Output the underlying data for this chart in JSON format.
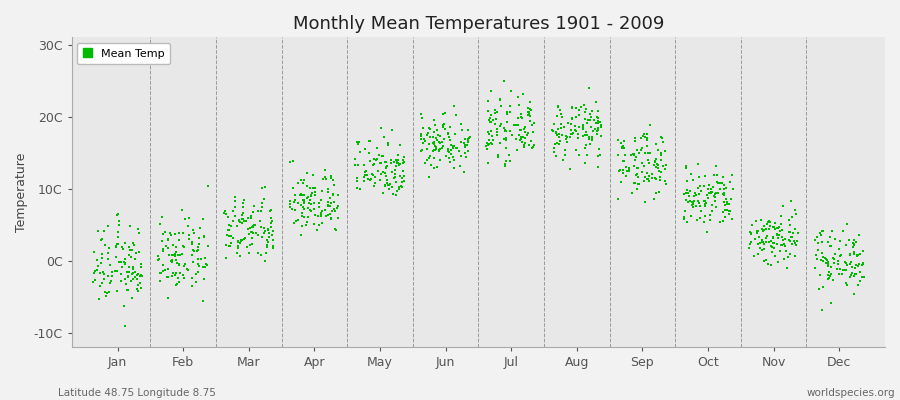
{
  "title": "Monthly Mean Temperatures 1901 - 2009",
  "ylabel": "Temperature",
  "ytick_labels": [
    "-10C",
    "0C",
    "10C",
    "20C",
    "30C"
  ],
  "ytick_values": [
    -10,
    0,
    10,
    20,
    30
  ],
  "ylim": [
    -12,
    31
  ],
  "month_labels": [
    "Jan",
    "Feb",
    "Mar",
    "Apr",
    "May",
    "Jun",
    "Jul",
    "Aug",
    "Sep",
    "Oct",
    "Nov",
    "Dec"
  ],
  "dot_color": "#00BB00",
  "dot_size": 2,
  "background_color": "#f2f2f2",
  "plot_bg_color": "#e8e8e8",
  "legend_label": "Mean Temp",
  "subtitle_left": "Latitude 48.75 Longitude 8.75",
  "subtitle_right": "worldspecies.org",
  "title_fontsize": 13,
  "label_fontsize": 9,
  "monthly_means": [
    -0.8,
    0.5,
    4.2,
    8.0,
    13.0,
    16.5,
    18.2,
    18.0,
    13.5,
    8.5,
    3.2,
    0.2
  ],
  "monthly_stds": [
    2.8,
    2.5,
    2.3,
    2.2,
    2.2,
    2.0,
    2.0,
    2.0,
    2.2,
    2.2,
    2.0,
    2.2
  ],
  "n_years": 109,
  "vline_color": "#999999",
  "spine_color": "#aaaaaa"
}
